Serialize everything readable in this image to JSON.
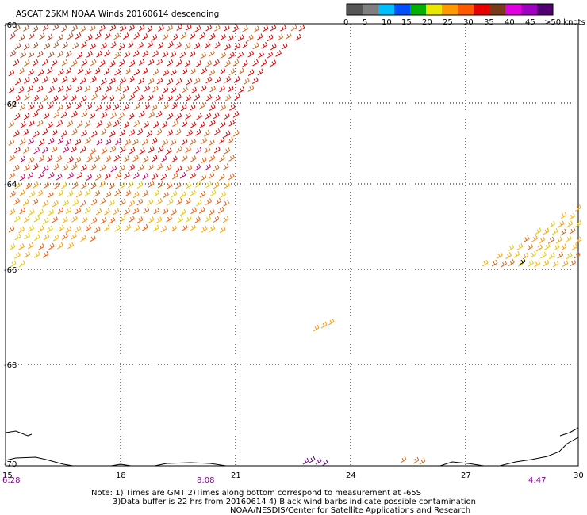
{
  "title": "ASCAT 25KM NOAA Winds 20160614 descending",
  "legend": {
    "colors": [
      "#555555",
      "#7f7f7f",
      "#00bfff",
      "#0050ff",
      "#00b000",
      "#e8e800",
      "#ff9a00",
      "#ff5a00",
      "#e60000",
      "#7a3a1a",
      "#e000e0",
      "#a000c0",
      "#500070"
    ],
    "labels": [
      "0",
      "5",
      "10",
      "15",
      "20",
      "25",
      "30",
      "35",
      "40",
      "45",
      ">50 knots"
    ]
  },
  "x_ticks": [
    "15",
    "18",
    "21",
    "24",
    "27",
    "30"
  ],
  "y_ticks": [
    "-60",
    "-62",
    "-64",
    "-66",
    "-68",
    "-70"
  ],
  "times": [
    "6:28",
    "8:08",
    "4:47"
  ],
  "notes": [
    "Note: 1) Times are GMT 2)Times along bottom correspond to measurement at -65S",
    "3)Data buffer is 22 hrs from 20160614 4) Black wind barbs indicate possible contamination",
    "NOAA/NESDIS/Center for Satellite Applications and Research"
  ]
}
